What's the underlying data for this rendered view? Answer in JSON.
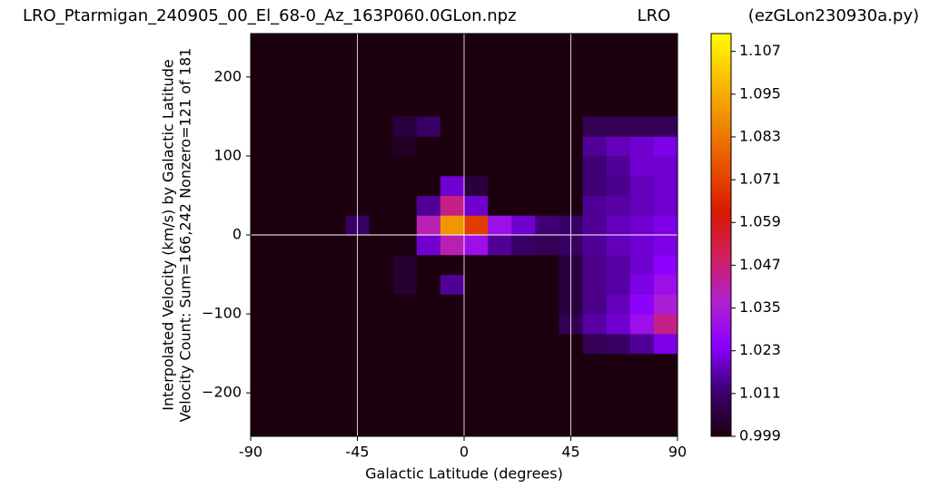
{
  "chart_data": {
    "type": "heatmap",
    "title": "LRO_Ptarmigan_240905_00_El_68-0_Az_163P060.0GLon.npz",
    "subtitle": "LRO",
    "source": "(ezGLon230930a.py)",
    "x_label": "Galactic Latitude (degrees)",
    "y_label": [
      "Interpolated Velocity (km/s) by Galactic Latitude",
      "Velocity Count: Sum=166,242 Nonzero=121 of 181"
    ],
    "x_edges": [
      -90,
      -80,
      -70,
      -60,
      -50,
      -40,
      -30,
      -20,
      -10,
      0,
      10,
      20,
      30,
      40,
      50,
      60,
      70,
      80,
      90
    ],
    "y_edges": [
      -150,
      -125,
      -100,
      -75,
      -50,
      -25,
      0,
      25,
      50,
      75,
      100,
      125,
      150
    ],
    "z": [
      [
        0.999,
        0.999,
        0.999,
        0.999,
        0.999,
        0.999,
        0.999,
        0.999,
        0.999,
        0.999,
        0.999,
        0.999,
        0.999,
        0.999,
        1.008,
        1.01,
        1.015,
        1.022
      ],
      [
        0.999,
        0.999,
        0.999,
        0.999,
        0.999,
        0.999,
        0.999,
        0.999,
        0.999,
        0.999,
        0.999,
        0.999,
        0.999,
        1.008,
        1.016,
        1.02,
        1.03,
        1.045
      ],
      [
        0.999,
        0.999,
        0.999,
        0.999,
        0.999,
        0.999,
        0.999,
        0.999,
        0.999,
        0.999,
        0.999,
        0.999,
        0.999,
        1.005,
        1.014,
        1.018,
        1.025,
        1.035
      ],
      [
        0.999,
        0.999,
        0.999,
        0.999,
        0.999,
        0.999,
        1.003,
        0.999,
        1.015,
        0.999,
        0.999,
        0.999,
        0.999,
        1.005,
        1.014,
        1.016,
        1.022,
        1.03
      ],
      [
        0.999,
        0.999,
        0.999,
        0.999,
        0.999,
        0.999,
        1.003,
        0.999,
        0.999,
        0.999,
        0.999,
        0.999,
        0.999,
        1.005,
        1.014,
        1.016,
        1.02,
        1.025
      ],
      [
        0.999,
        0.999,
        0.999,
        0.999,
        0.999,
        0.999,
        0.999,
        1.02,
        1.04,
        1.03,
        1.015,
        1.01,
        1.008,
        1.01,
        1.015,
        1.018,
        1.02,
        1.022
      ],
      [
        0.999,
        0.999,
        0.999,
        0.999,
        1.01,
        0.999,
        0.999,
        1.04,
        1.09,
        1.07,
        1.03,
        1.02,
        1.012,
        1.01,
        1.015,
        1.018,
        1.02,
        1.022
      ],
      [
        0.999,
        0.999,
        0.999,
        0.999,
        0.999,
        0.999,
        0.999,
        1.015,
        1.045,
        1.02,
        0.999,
        0.999,
        0.999,
        0.999,
        1.015,
        1.016,
        1.018,
        1.02
      ],
      [
        0.999,
        0.999,
        0.999,
        0.999,
        0.999,
        0.999,
        0.999,
        0.999,
        1.02,
        1.005,
        0.999,
        0.999,
        0.999,
        0.999,
        1.012,
        1.014,
        1.018,
        1.02
      ],
      [
        0.999,
        0.999,
        0.999,
        0.999,
        0.999,
        0.999,
        0.999,
        0.999,
        0.999,
        0.999,
        0.999,
        0.999,
        0.999,
        0.999,
        1.012,
        1.015,
        1.02,
        1.02
      ],
      [
        0.999,
        0.999,
        0.999,
        0.999,
        0.999,
        0.999,
        1.002,
        0.999,
        0.999,
        0.999,
        0.999,
        0.999,
        0.999,
        0.999,
        1.015,
        1.018,
        1.02,
        1.022
      ],
      [
        0.999,
        0.999,
        0.999,
        0.999,
        0.999,
        0.999,
        1.005,
        1.01,
        0.999,
        0.999,
        0.999,
        0.999,
        0.999,
        0.999,
        1.008,
        1.008,
        1.008,
        1.008
      ]
    ],
    "xlim": [
      -90,
      90
    ],
    "xticks": [
      -90,
      -45,
      0,
      45,
      90
    ],
    "ylim": [
      -255,
      255
    ],
    "yticks": [
      {
        "value": -200,
        "label": "−200"
      },
      {
        "value": -100,
        "label": "−100"
      },
      0,
      100,
      200
    ],
    "clim": [
      0.999,
      1.112
    ],
    "cticks": [
      0.999,
      1.011,
      1.023,
      1.035,
      1.047,
      1.059,
      1.071,
      1.083,
      1.095,
      1.107
    ],
    "colormap": [
      "#1c0010",
      "#3c0070",
      "#8a00ff",
      "#b020d0",
      "#d02060",
      "#d81800",
      "#e85000",
      "#f08800",
      "#f8c000",
      "#ffff00"
    ],
    "grid": true,
    "grid_color": "#ffffff",
    "hline": 0
  }
}
